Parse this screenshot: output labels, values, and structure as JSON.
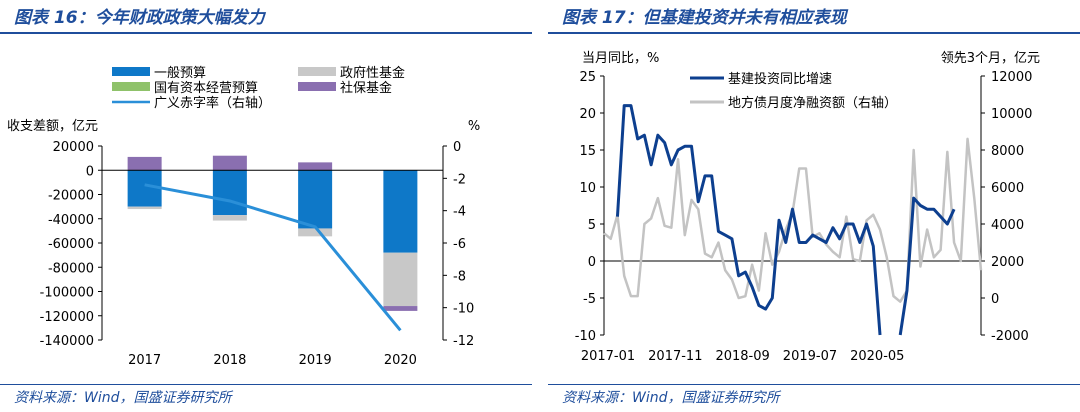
{
  "colors": {
    "title_blue": "#1f4e9c",
    "budget_blue": "#0e78c8",
    "gov_fund_gray": "#c8c8c8",
    "soe_green": "#8fc26a",
    "social_purple": "#8a6fb0",
    "deficit_line": "#2a8fd8",
    "infra_line": "#0d3f8f",
    "bond_line": "#c3c3c3"
  },
  "footer": {
    "source_left": "资料来源：Wind，国盛证券研究所",
    "source_right": "资料来源：Wind，国盛证券研究所"
  },
  "left_chart": {
    "title": "图表 16：今年财政政策大幅发力",
    "chart_data": {
      "type": "bar",
      "stacked": true,
      "categories": [
        "2017",
        "2018",
        "2019",
        "2020"
      ],
      "y_left_label": "收支差额，亿元",
      "y_right_label": "%",
      "y_left_range": [
        -140000,
        20000
      ],
      "y_left_ticks": [
        20000,
        0,
        -20000,
        -40000,
        -60000,
        -80000,
        -100000,
        -120000,
        -140000
      ],
      "y_right_range": [
        -12,
        0
      ],
      "y_right_ticks": [
        0,
        -2,
        -4,
        -6,
        -8,
        -10,
        -12
      ],
      "legend_position": "top",
      "series": [
        {
          "name": "一般预算",
          "color_key": "budget_blue",
          "values": [
            -30000,
            -37000,
            -48000,
            -68000
          ]
        },
        {
          "name": "政府性基金",
          "color_key": "gov_fund_gray",
          "values": [
            -2000,
            -4500,
            -6500,
            -44000
          ]
        },
        {
          "name": "国有资本经营预算",
          "color_key": "soe_green",
          "values": [
            0,
            0,
            0,
            0
          ]
        },
        {
          "name": "社保基金",
          "color_key": "social_purple",
          "values": [
            11000,
            12000,
            6500,
            -4000
          ]
        }
      ],
      "line_series": {
        "name": "广义赤字率（右轴）",
        "color_key": "deficit_line",
        "axis": "right",
        "values": [
          -2.4,
          -3.4,
          -5.0,
          -11.4
        ]
      }
    }
  },
  "right_chart": {
    "title": "图表 17：但基建投资并未有相应表现",
    "chart_data": {
      "type": "line",
      "y_left_label": "当月同比，%",
      "y_right_label": "领先3个月，亿元",
      "y_left_range": [
        -10,
        25
      ],
      "y_left_ticks": [
        25,
        20,
        15,
        10,
        5,
        0,
        -5,
        -10
      ],
      "y_right_range": [
        -2000,
        12000
      ],
      "y_right_ticks": [
        12000,
        10000,
        8000,
        6000,
        4000,
        2000,
        0,
        -2000
      ],
      "x_tick_labels": [
        "2017-01",
        "2017-11",
        "2018-09",
        "2019-07",
        "2020-05"
      ],
      "x_tick_index": [
        0,
        10,
        20,
        30,
        40
      ],
      "legend_position": "top-left",
      "series": [
        {
          "name": "基建投资同比增速",
          "color_key": "infra_line",
          "axis": "left",
          "values": [
            null,
            null,
            6,
            21,
            21,
            16.5,
            17,
            13,
            17,
            16,
            13,
            15,
            15.5,
            15.5,
            8,
            11.5,
            11.5,
            4,
            3.5,
            3,
            -2,
            -1.5,
            -3.5,
            -6,
            -6.5,
            -5,
            5.5,
            2.5,
            7,
            2.5,
            2.5,
            3.5,
            3,
            2.5,
            4.5,
            3,
            5,
            5,
            2.5,
            5,
            2,
            -10,
            null,
            null,
            -10,
            -4,
            8.5,
            7.5,
            7,
            7,
            6,
            5,
            7
          ]
        },
        {
          "name": "地方债月度净融资额（右轴）",
          "color_key": "bond_line",
          "axis": "right",
          "values": [
            3500,
            3200,
            4500,
            1200,
            100,
            100,
            4000,
            4300,
            5400,
            3900,
            3800,
            7500,
            3400,
            5300,
            4800,
            2400,
            2200,
            3000,
            1500,
            1000,
            0,
            100,
            1800,
            400,
            3500,
            1800,
            2500,
            3700,
            4600,
            7000,
            7000,
            3300,
            3500,
            2900,
            2500,
            2200,
            4400,
            2100,
            2000,
            4200,
            4500,
            3700,
            2200,
            100,
            -200,
            400,
            8000,
            1700,
            3700,
            2200,
            2600,
            7900,
            3000,
            2000,
            8600,
            5400,
            1500
          ]
        }
      ]
    }
  }
}
